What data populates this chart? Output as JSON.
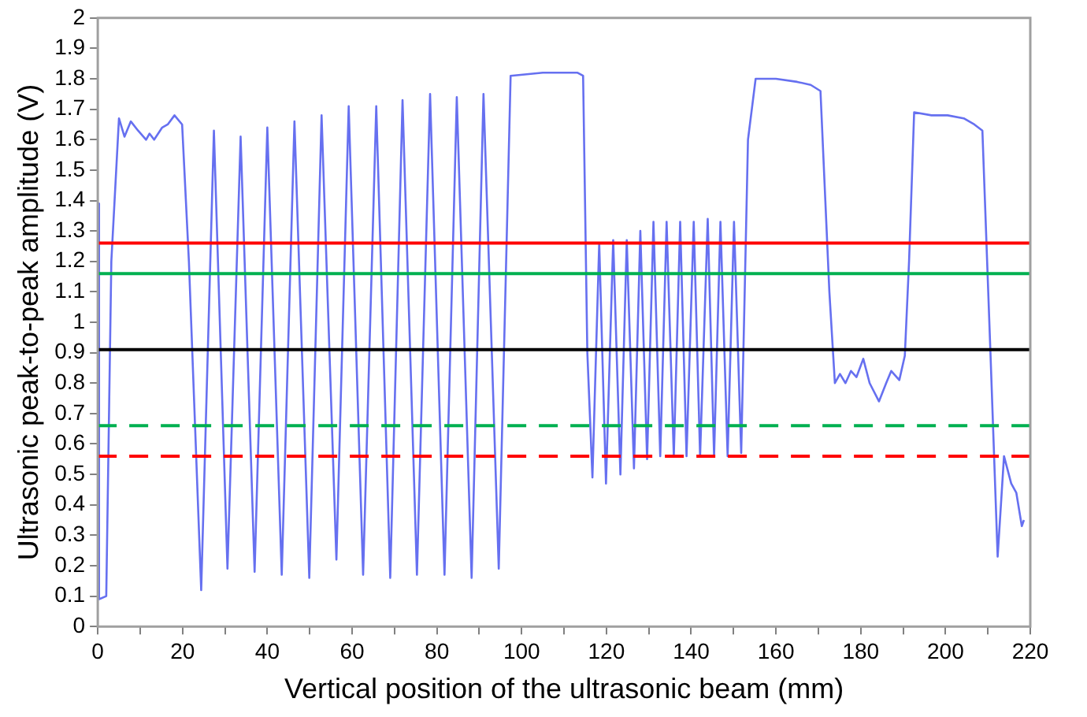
{
  "chart_data": {
    "type": "line",
    "xlabel": "Vertical position of the ultrasonic beam (mm)",
    "ylabel": "Ultrasonic peak-to-peak amplitude (V)",
    "xlim": [
      0,
      220
    ],
    "xticks": [
      0,
      {
        "value": 10,
        "label": null
      },
      20,
      {
        "value": 30,
        "label": null
      },
      40,
      {
        "value": 50,
        "label": null
      },
      60,
      {
        "value": 70,
        "label": null
      },
      80,
      {
        "value": 90,
        "label": null
      },
      100,
      {
        "value": 110,
        "label": null
      },
      120,
      {
        "value": 130,
        "label": null
      },
      140,
      {
        "value": 150,
        "label": null
      },
      160,
      {
        "value": 170,
        "label": null
      },
      180,
      {
        "value": 190,
        "label": null
      },
      200,
      {
        "value": 210,
        "label": null
      },
      220
    ],
    "ylim": [
      0,
      2
    ],
    "yticks": [
      0,
      0.1,
      0.2,
      0.3,
      0.4,
      0.5,
      0.6,
      0.7,
      0.8,
      0.9,
      1,
      1.1,
      1.2,
      1.3,
      1.4,
      1.5,
      1.6,
      1.7,
      1.8,
      1.9,
      2
    ],
    "grid": false,
    "legend": false,
    "marker": "none",
    "line_style": "solid",
    "series": [
      {
        "color": "#6670f0",
        "x": [
          0,
          0.3,
          2,
          3.2,
          5,
          6.3,
          7.8,
          9.5,
          11.4,
          12.2,
          13.3,
          15.2,
          16.5,
          18.1,
          19.9,
          21.5,
          24.4,
          27.4,
          30.6,
          33.7,
          37,
          40,
          43.4,
          46.4,
          49.9,
          52.8,
          56.3,
          59.2,
          62.6,
          65.7,
          69,
          71.9,
          75.3,
          78.4,
          81.8,
          84.7,
          88.2,
          91,
          94.6,
          97.4,
          105,
          113.2,
          114.5,
          115.5,
          116.7,
          118.3,
          119.9,
          121.6,
          123.3,
          124.8,
          126.5,
          128,
          129.6,
          131.1,
          132.7,
          134.2,
          135.9,
          137.4,
          138.9,
          140.6,
          142.1,
          143.9,
          145.4,
          146.9,
          148.6,
          150.1,
          151.8,
          153.4,
          155.2,
          160,
          165,
          168.2,
          170.5,
          172.6,
          173.9,
          175.1,
          176.4,
          177.7,
          179,
          180.6,
          182.1,
          184.3,
          186,
          187.2,
          189.1,
          190.4,
          191.4,
          192.6,
          196.7,
          200.5,
          204.3,
          206.8,
          208.7,
          210.6,
          212.3,
          213.8,
          215.5,
          216.7,
          218,
          218.5
        ],
        "values": [
          1.39,
          0.09,
          0.1,
          1.2,
          1.67,
          1.61,
          1.66,
          1.63,
          1.6,
          1.62,
          1.6,
          1.64,
          1.65,
          1.68,
          1.65,
          1.2,
          0.12,
          1.63,
          0.19,
          1.61,
          0.18,
          1.64,
          0.17,
          1.66,
          0.16,
          1.68,
          0.22,
          1.71,
          0.17,
          1.71,
          0.16,
          1.73,
          0.17,
          1.75,
          0.17,
          1.74,
          0.16,
          1.75,
          0.19,
          1.81,
          1.82,
          1.82,
          1.81,
          0.9,
          0.49,
          1.26,
          0.47,
          1.27,
          0.5,
          1.27,
          0.52,
          1.3,
          0.55,
          1.33,
          0.56,
          1.33,
          0.56,
          1.33,
          0.56,
          1.33,
          0.56,
          1.34,
          0.56,
          1.33,
          0.56,
          1.33,
          0.57,
          1.6,
          1.8,
          1.8,
          1.79,
          1.78,
          1.76,
          1.1,
          0.8,
          0.83,
          0.8,
          0.84,
          0.82,
          0.88,
          0.8,
          0.74,
          0.8,
          0.84,
          0.81,
          0.89,
          1.2,
          1.69,
          1.68,
          1.68,
          1.67,
          1.65,
          1.63,
          0.9,
          0.23,
          0.56,
          0.47,
          0.44,
          0.33,
          0.35
        ]
      }
    ],
    "ref_lines": [
      {
        "axis": "y",
        "value": 1.26,
        "color": "#ff0000",
        "line_style": "solid"
      },
      {
        "axis": "y",
        "value": 1.16,
        "color": "#00b050",
        "line_style": "solid"
      },
      {
        "axis": "y",
        "value": 0.91,
        "color": "#000000",
        "line_style": "solid"
      },
      {
        "axis": "y",
        "value": 0.66,
        "color": "#00b050",
        "line_style": "dashed"
      },
      {
        "axis": "y",
        "value": 0.56,
        "color": "#ff0000",
        "line_style": "dashed"
      }
    ]
  }
}
